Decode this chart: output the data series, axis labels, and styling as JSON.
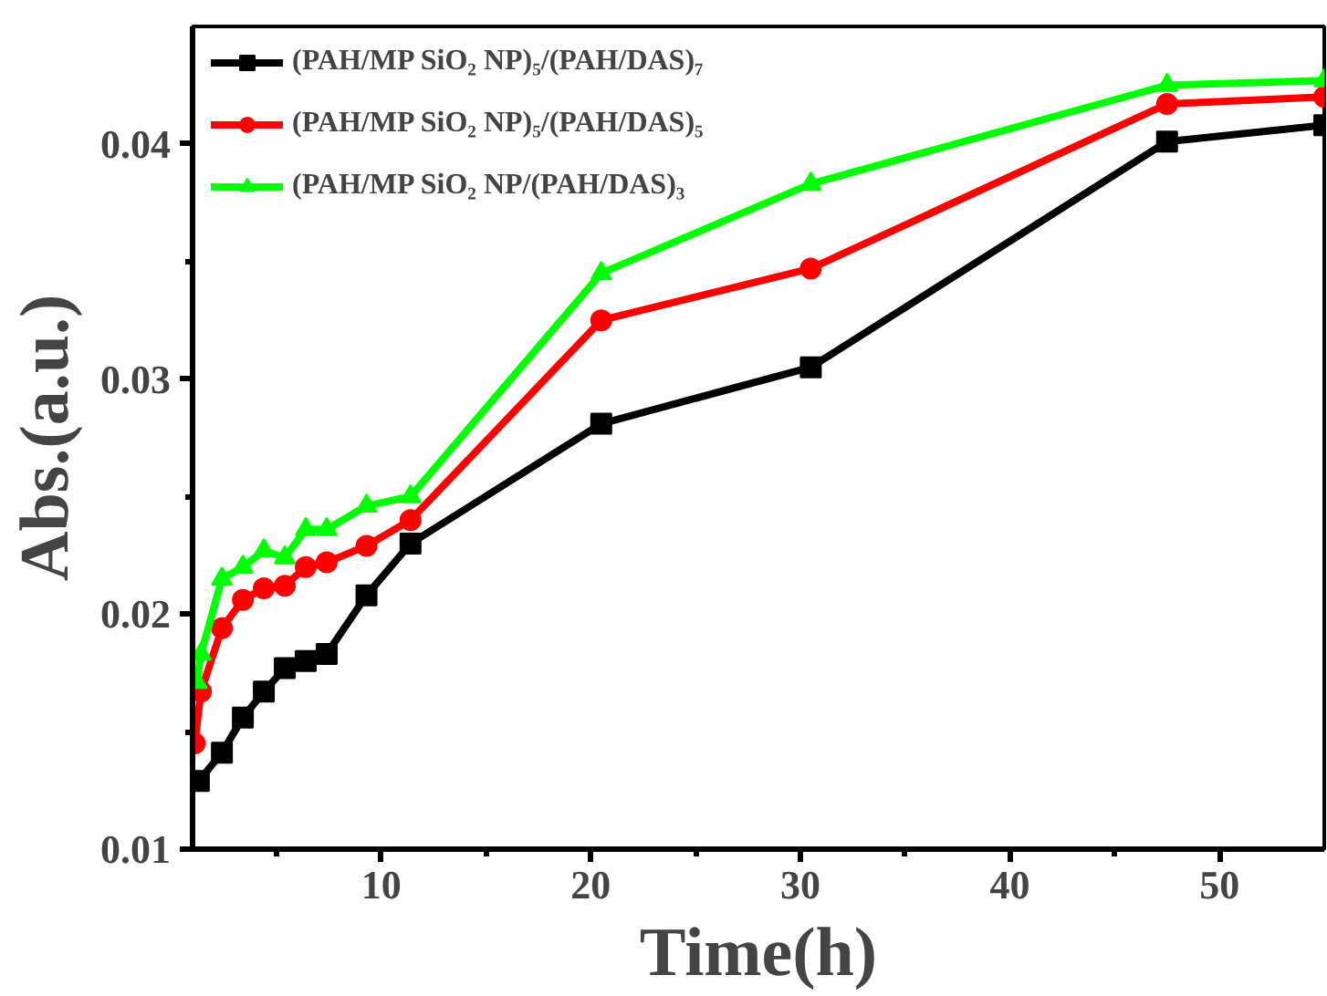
{
  "chart_data": {
    "type": "line",
    "xlabel": "Time(h)",
    "ylabel": "Abs.(a.u.)",
    "xlim": [
      1,
      55
    ],
    "ylim": [
      0.01,
      0.045
    ],
    "xticks": [
      {
        "value": 5,
        "label": null
      },
      10,
      {
        "value": 15,
        "label": null
      },
      20,
      {
        "value": 25,
        "label": null
      },
      30,
      {
        "value": 35,
        "label": null
      },
      40,
      {
        "value": 45,
        "label": null
      },
      50
    ],
    "yticks": [
      0.01,
      {
        "value": 0.015,
        "label": null
      },
      0.02,
      {
        "value": 0.025,
        "label": null
      },
      0.03,
      {
        "value": 0.035,
        "label": null
      },
      0.04
    ],
    "grid": false,
    "legend": "top left",
    "line_style": "solid",
    "series": [
      {
        "name": "(PAH/MP SiO₂ NP)₅/(PAH/DAS)₇",
        "color": "#000000",
        "marker": "square",
        "x": [
          1.3,
          2.4,
          3.4,
          4.4,
          5.4,
          6.4,
          7.4,
          9.3,
          11.4,
          20.5,
          30.5,
          47.5,
          55
        ],
        "values": [
          0.0129,
          0.0141,
          0.0156,
          0.0167,
          0.0177,
          0.018,
          0.0183,
          0.0208,
          0.023,
          0.0281,
          0.0305,
          0.0401,
          0.0408
        ]
      },
      {
        "name": "(PAH/MP SiO₂ NP)₅/(PAH/DAS)₅",
        "color": "#ff0000",
        "marker": "circle",
        "x": [
          1.1,
          1.4,
          2.4,
          3.4,
          4.4,
          5.4,
          6.4,
          7.4,
          9.3,
          11.4,
          20.5,
          30.5,
          47.5,
          55
        ],
        "values": [
          0.0145,
          0.0167,
          0.0194,
          0.0206,
          0.0211,
          0.0212,
          0.022,
          0.0222,
          0.0229,
          0.024,
          0.0325,
          0.0347,
          0.0417,
          0.042
        ]
      },
      {
        "name": "(PAH/MP SiO₂ NP/(PAH/DAS)₃",
        "color": "#00ff00",
        "marker": "triangle",
        "x": [
          1.2,
          1.4,
          2.4,
          3.4,
          4.4,
          5.4,
          6.4,
          7.4,
          9.3,
          11.4,
          20.5,
          30.5,
          47.5,
          55
        ],
        "values": [
          0.0171,
          0.0183,
          0.0215,
          0.022,
          0.0227,
          0.0224,
          0.0236,
          0.0236,
          0.0246,
          0.025,
          0.0345,
          0.0383,
          0.0425,
          0.0427
        ]
      }
    ]
  }
}
